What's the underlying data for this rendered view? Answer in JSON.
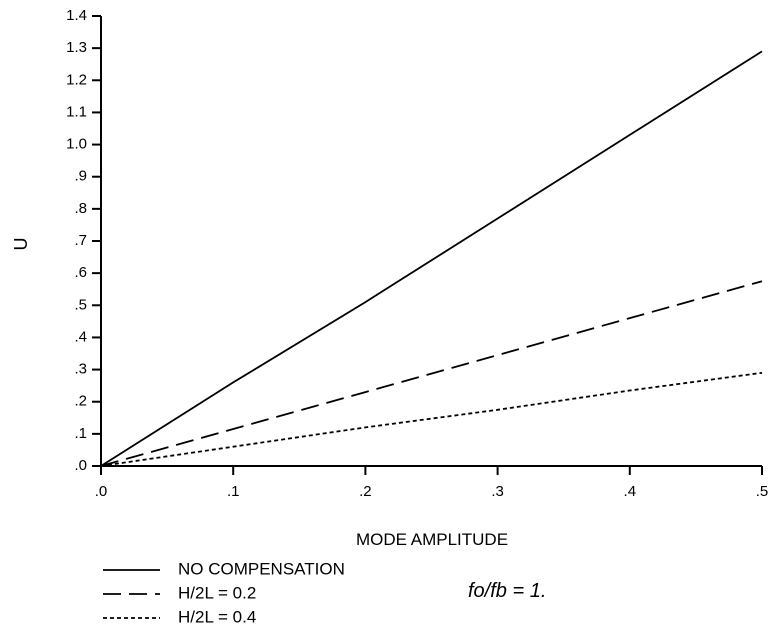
{
  "chart_data": {
    "type": "line",
    "xlabel": "MODE AMPLITUDE",
    "ylabel": "U",
    "xlim": [
      0,
      0.5
    ],
    "ylim": [
      0,
      1.4
    ],
    "x_ticks": [
      ".0",
      ".1",
      ".2",
      ".3",
      ".4",
      ".5"
    ],
    "y_ticks": [
      ".0",
      ".1",
      ".2",
      ".3",
      ".4",
      ".5",
      ".6",
      ".7",
      ".8",
      ".9",
      "1.0",
      "1.1",
      "1.2",
      "1.3",
      "1.4"
    ],
    "grid": false,
    "legend_position": "bottom-left",
    "annotation": "fo/fb = 1.",
    "series": [
      {
        "name": "NO COMPENSATION",
        "style": "solid",
        "x": [
          0,
          0.1,
          0.2,
          0.3,
          0.4,
          0.5
        ],
        "y": [
          0,
          0.26,
          0.51,
          0.77,
          1.03,
          1.29
        ]
      },
      {
        "name": "H/2L = 0.2",
        "style": "dashed",
        "x": [
          0,
          0.1,
          0.2,
          0.3,
          0.4,
          0.5
        ],
        "y": [
          0,
          0.115,
          0.23,
          0.345,
          0.46,
          0.575
        ]
      },
      {
        "name": "H/2L = 0.4",
        "style": "dotted",
        "x": [
          0,
          0.1,
          0.2,
          0.3,
          0.4,
          0.5
        ],
        "y": [
          0,
          0.06,
          0.12,
          0.175,
          0.235,
          0.29
        ]
      }
    ]
  }
}
